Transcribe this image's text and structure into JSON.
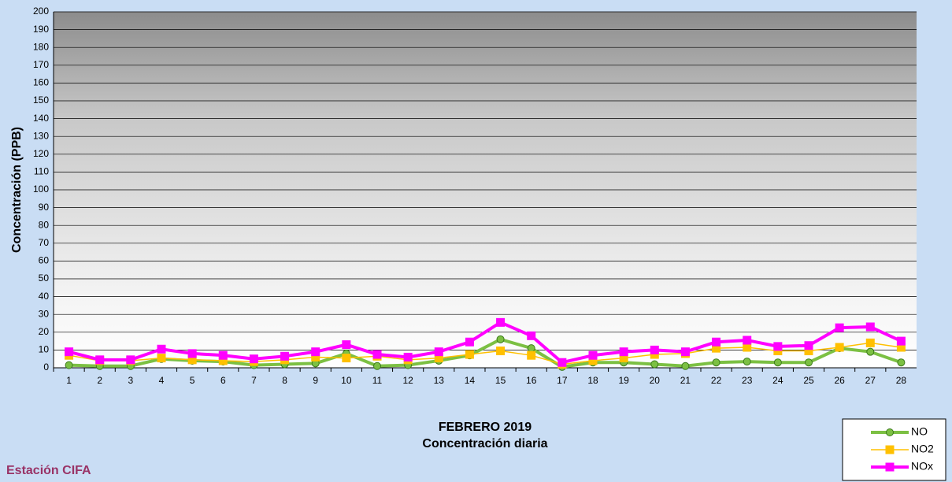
{
  "chart_data": {
    "type": "line",
    "y_label": "Concentración  (PPB)",
    "x_label": "FEBRERO 2019",
    "subtitle": "Concentración diaria",
    "station": "Estación CIFA",
    "categories": [
      1,
      2,
      3,
      4,
      5,
      6,
      7,
      8,
      9,
      10,
      11,
      12,
      13,
      14,
      15,
      16,
      17,
      18,
      19,
      20,
      21,
      22,
      23,
      24,
      25,
      26,
      27,
      28
    ],
    "ylim": [
      0,
      200
    ],
    "yticks": [
      0,
      10,
      20,
      30,
      40,
      50,
      60,
      70,
      80,
      90,
      100,
      110,
      120,
      130,
      140,
      150,
      160,
      170,
      180,
      190,
      200
    ],
    "grid": true,
    "legend": "bottom-right",
    "series": [
      {
        "name": "NO",
        "color": "#7cc043",
        "marker": "circle",
        "values": [
          1.5,
          1,
          1,
          5,
          4,
          3.5,
          1.5,
          2,
          2.5,
          8,
          1,
          1.5,
          4,
          7,
          16,
          11,
          0.5,
          3,
          3,
          2,
          1,
          3,
          3.5,
          3,
          3,
          11,
          9,
          3
        ]
      },
      {
        "name": "NO2",
        "color": "#ffc000",
        "marker": "square",
        "values": [
          7,
          4,
          4,
          5.5,
          4.5,
          4,
          3.5,
          4.5,
          6,
          5.5,
          6.5,
          4.5,
          5.5,
          7.5,
          9.5,
          7,
          2,
          4,
          5.5,
          7.5,
          8,
          11,
          11.5,
          9.5,
          9.5,
          11.5,
          14,
          11.5
        ]
      },
      {
        "name": "NOx",
        "color": "#ff00ff",
        "marker": "square",
        "values": [
          9,
          4.5,
          4.5,
          10.5,
          8,
          7,
          5,
          6.5,
          9,
          13,
          7.5,
          6,
          9,
          14.5,
          25.5,
          18,
          3,
          7,
          9,
          10,
          9,
          14.5,
          15.5,
          12,
          12.5,
          22.5,
          23,
          15
        ]
      }
    ]
  }
}
